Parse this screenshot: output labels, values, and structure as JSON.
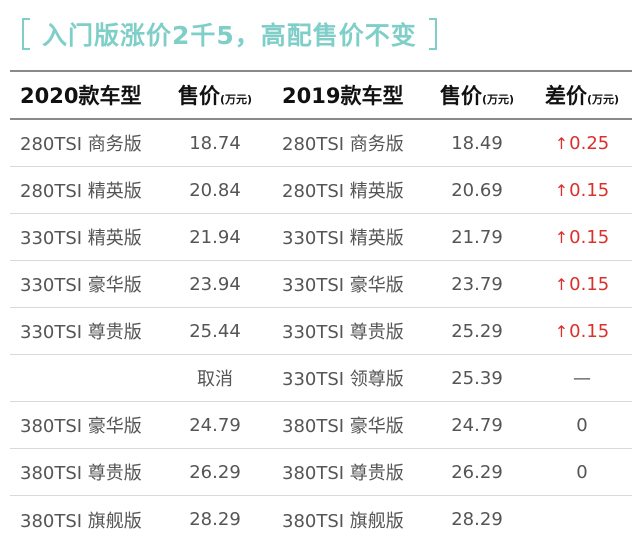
{
  "title": "入门版涨价2千5，高配售价不变",
  "header": {
    "col_2020": "2020款车型",
    "col_price": "售价",
    "unit": "(万元)",
    "col_2019": "2019款车型",
    "col_diff": "差价"
  },
  "rows": [
    {
      "model2020": "280TSI 商务版",
      "price2020": "18.74",
      "model2019": "280TSI 商务版",
      "price2019": "18.49",
      "diff": "0.25",
      "diff_up": true
    },
    {
      "model2020": "280TSI 精英版",
      "price2020": "20.84",
      "model2019": "280TSI 精英版",
      "price2019": "20.69",
      "diff": "0.15",
      "diff_up": true
    },
    {
      "model2020": "330TSI 精英版",
      "price2020": "21.94",
      "model2019": "330TSI 精英版",
      "price2019": "21.79",
      "diff": "0.15",
      "diff_up": true
    },
    {
      "model2020": "330TSI 豪华版",
      "price2020": "23.94",
      "model2019": "330TSI 豪华版",
      "price2019": "23.79",
      "diff": "0.15",
      "diff_up": true
    },
    {
      "model2020": "330TSI 尊贵版",
      "price2020": "25.44",
      "model2019": "330TSI 尊贵版",
      "price2019": "25.29",
      "diff": "0.15",
      "diff_up": true
    },
    {
      "model2020": "",
      "price2020": "取消",
      "model2019": "330TSI 领尊版",
      "price2019": "25.39",
      "diff": "—",
      "diff_up": false
    },
    {
      "model2020": "380TSI 豪华版",
      "price2020": "24.79",
      "model2019": "380TSI 豪华版",
      "price2019": "24.79",
      "diff": "0",
      "diff_up": false
    },
    {
      "model2020": "380TSI 尊贵版",
      "price2020": "26.29",
      "model2019": "380TSI 尊贵版",
      "price2019": "26.29",
      "diff": "0",
      "diff_up": false
    },
    {
      "model2020": "380TSI 旗舰版",
      "price2020": "28.29",
      "model2019": "380TSI 旗舰版",
      "price2019": "28.29",
      "diff": "",
      "diff_up": false
    }
  ],
  "colors": {
    "accent": "#7fcfc8",
    "increase": "#d9312b",
    "rule": "#8a8a8a"
  },
  "icons": {
    "increase": "up-arrow-icon"
  }
}
